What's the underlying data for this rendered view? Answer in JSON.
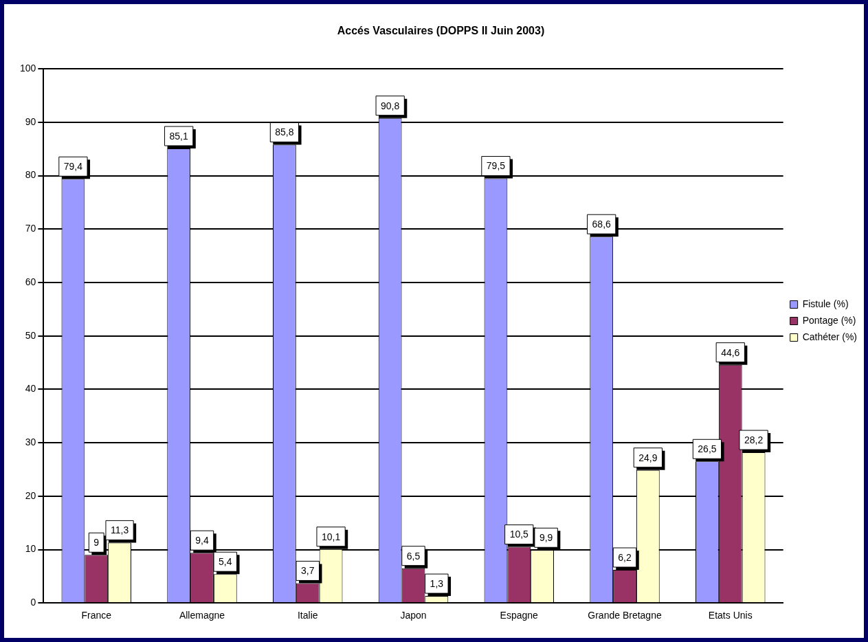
{
  "chart_data": {
    "type": "bar",
    "title": "Accés Vasculaires (DOPPS II Juin 2003)",
    "categories": [
      "France",
      "Allemagne",
      "Italie",
      "Japon",
      "Espagne",
      "Grande Bretagne",
      "Etats Unis"
    ],
    "series": [
      {
        "name": "Fistule (%)",
        "color": "#9999ff",
        "values": [
          79.4,
          85.1,
          85.8,
          90.8,
          79.5,
          68.6,
          26.5
        ],
        "value_labels": [
          "79,4",
          "85,1",
          "85,8",
          "90,8",
          "79,5",
          "68,6",
          "26,5"
        ]
      },
      {
        "name": "Pontage (%)",
        "color": "#993366",
        "values": [
          9,
          9.4,
          3.7,
          6.5,
          10.5,
          6.2,
          44.6
        ],
        "value_labels": [
          "9",
          "9,4",
          "3,7",
          "6,5",
          "10,5",
          "6,2",
          "44,6"
        ]
      },
      {
        "name": "Cathéter (%)",
        "color": "#ffffcc",
        "values": [
          11.3,
          5.4,
          10.1,
          1.3,
          9.9,
          24.9,
          28.2
        ],
        "value_labels": [
          "11,3",
          "5,4",
          "10,1",
          "1,3",
          "9,9",
          "24,9",
          "28,2"
        ]
      }
    ],
    "ylim": [
      0,
      100
    ],
    "yticks": [
      0,
      10,
      20,
      30,
      40,
      50,
      60,
      70,
      80,
      90,
      100
    ],
    "grid": "y",
    "legend": "right"
  }
}
